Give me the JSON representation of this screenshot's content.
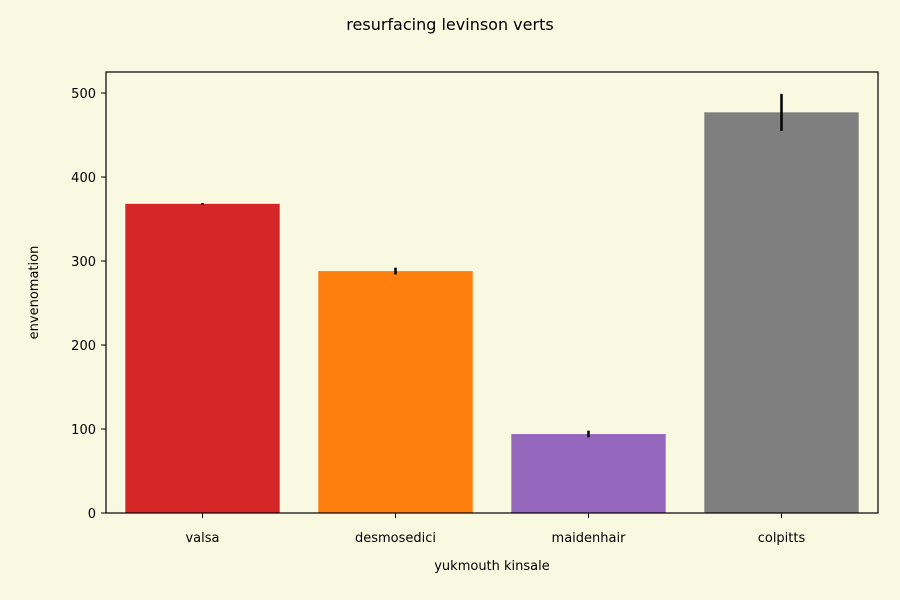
{
  "chart_data": {
    "type": "bar",
    "title": "resurfacing levinson verts",
    "xlabel": "yukmouth kinsale",
    "ylabel": "envenomation",
    "categories": [
      "valsa",
      "desmosedici",
      "maidenhair",
      "colpitts"
    ],
    "values": [
      368,
      288,
      94,
      477
    ],
    "errors": [
      1,
      4,
      4,
      22
    ],
    "colors": [
      "#d62728",
      "#ff7f0e",
      "#9467bd",
      "#7f7f7f"
    ],
    "ylim": [
      0,
      525
    ],
    "yticks": [
      0,
      100,
      200,
      300,
      400,
      500
    ],
    "grid": false,
    "legend": "none"
  }
}
